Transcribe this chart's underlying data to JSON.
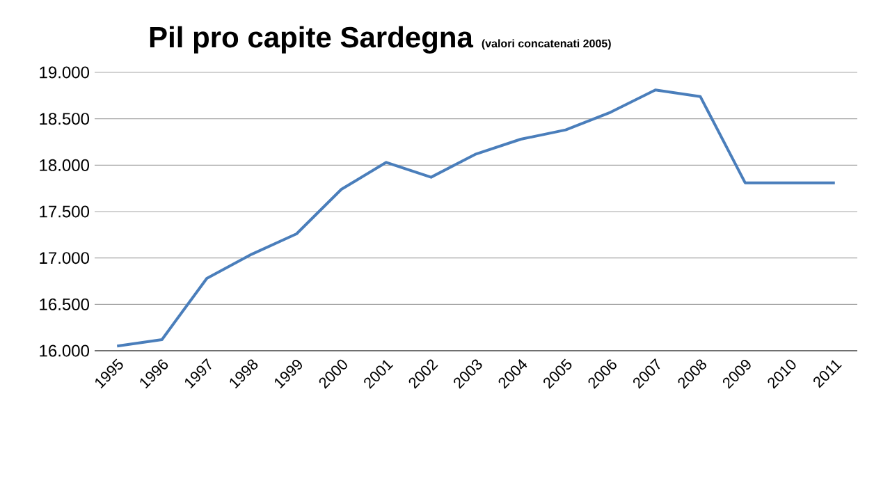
{
  "chart_data": {
    "type": "line",
    "title": "Pil pro capite Sardegna",
    "subtitle": "(valori concatenati 2005)",
    "categories": [
      "1995",
      "1996",
      "1997",
      "1998",
      "1999",
      "2000",
      "2001",
      "2002",
      "2003",
      "2004",
      "2005",
      "2006",
      "2007",
      "2008",
      "2009",
      "2010",
      "2011"
    ],
    "series": [
      {
        "color": "#4a7ebb",
        "values": [
          16050,
          16120,
          16780,
          17040,
          17260,
          17740,
          18030,
          17870,
          18120,
          18280,
          18380,
          18570,
          18810,
          18740,
          17810,
          17810,
          17810
        ]
      }
    ],
    "ylim": [
      16000,
      19000
    ],
    "yticks": [
      {
        "value": 16000,
        "label": "16.000"
      },
      {
        "value": 16500,
        "label": "16.500"
      },
      {
        "value": 17000,
        "label": "17.000"
      },
      {
        "value": 17500,
        "label": "17.500"
      },
      {
        "value": 18000,
        "label": "18.000"
      },
      {
        "value": 18500,
        "label": "18.500"
      },
      {
        "value": 19000,
        "label": "19.000"
      }
    ],
    "grid": "y",
    "marker": "none",
    "line_style": "solid"
  }
}
